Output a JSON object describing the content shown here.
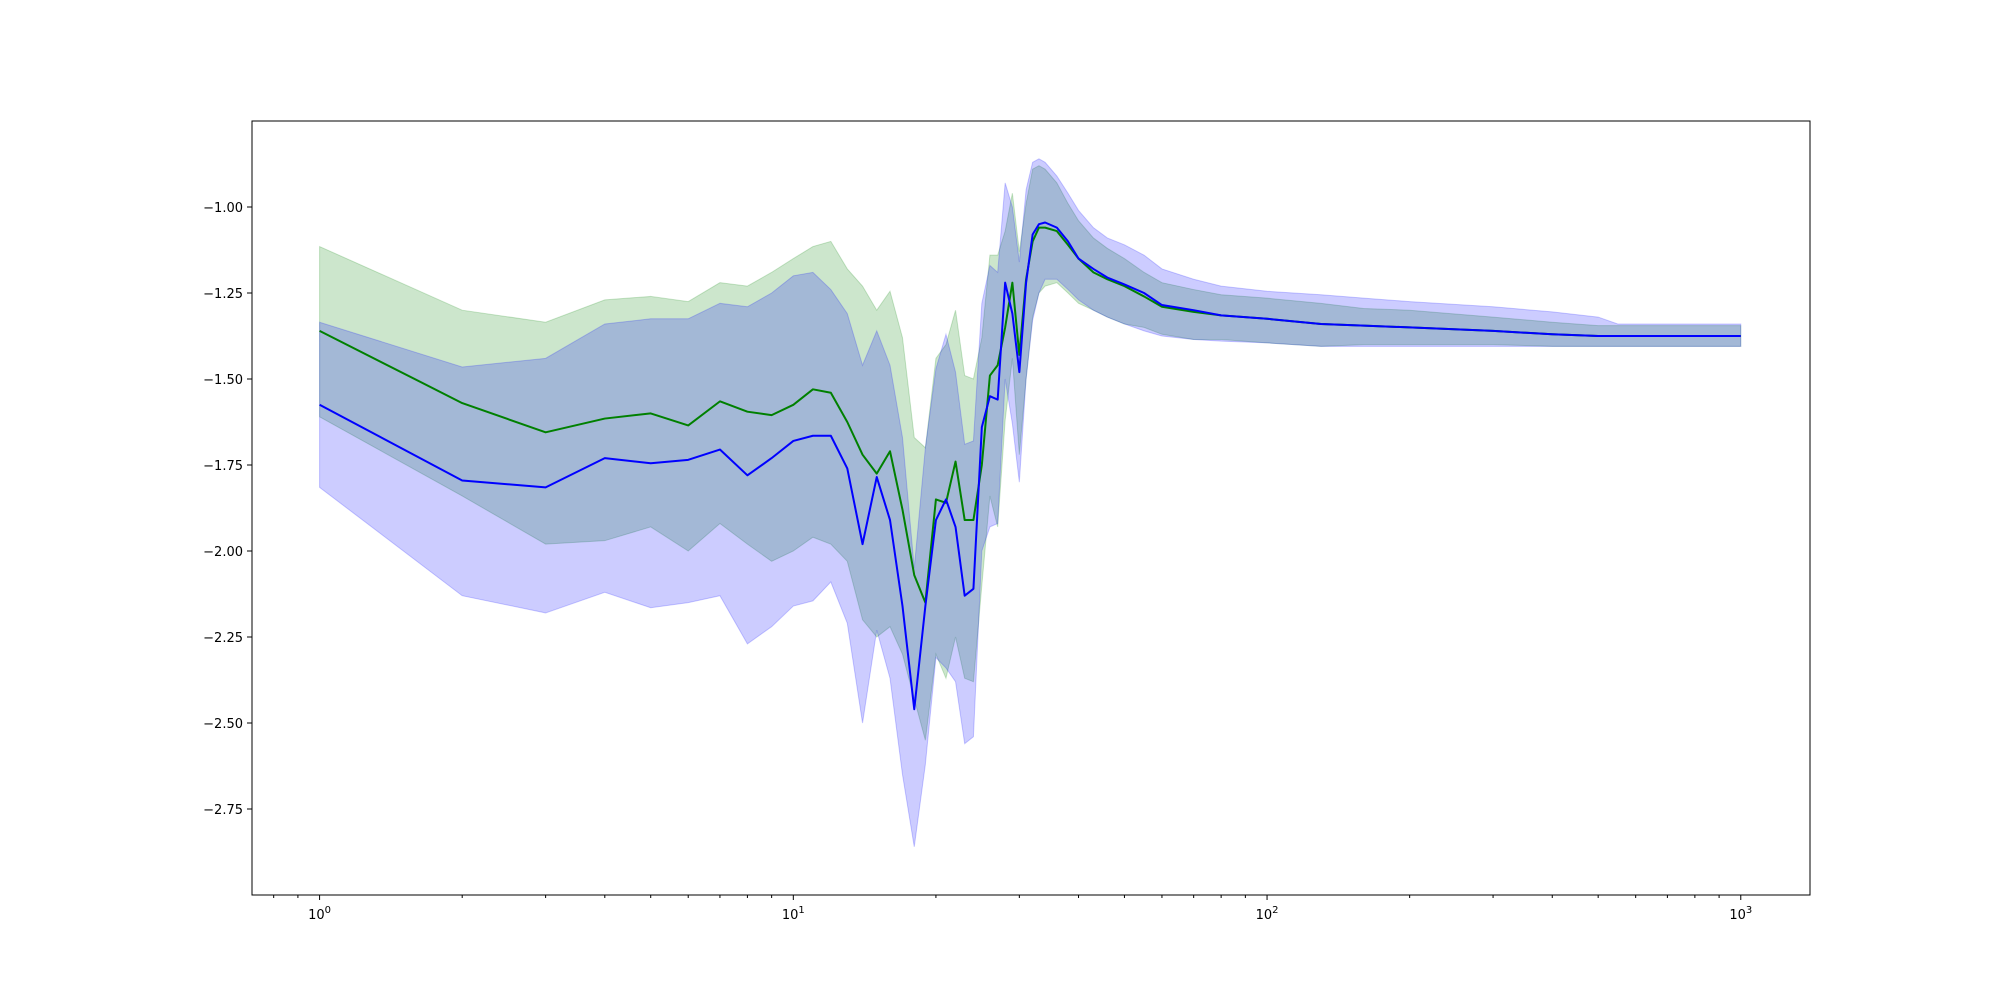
{
  "chart_data": {
    "type": "line",
    "title": "",
    "xlabel": "",
    "ylabel": "",
    "xscale": "log",
    "xlim": [
      0.72,
      1400
    ],
    "ylim": [
      -3.0,
      -0.75
    ],
    "grid": false,
    "legend": "none",
    "x_tick_labels": [
      {
        "value": 1,
        "base": "10",
        "exp": "0"
      },
      {
        "value": 10,
        "base": "10",
        "exp": "1"
      },
      {
        "value": 100,
        "base": "10",
        "exp": "2"
      },
      {
        "value": 1000,
        "base": "10",
        "exp": "3"
      }
    ],
    "y_ticks": [
      -1.0,
      -1.25,
      -1.5,
      -1.75,
      -2.0,
      -2.25,
      -2.5,
      -2.75
    ],
    "y_tick_labels": [
      "−1.00",
      "−1.25",
      "−1.50",
      "−1.75",
      "−2.00",
      "−2.25",
      "−2.50",
      "−2.75"
    ],
    "series": [
      {
        "color": "#008000",
        "fill_color": "#008000",
        "x": [
          1,
          2,
          3,
          4,
          5,
          6,
          7,
          8,
          9,
          10,
          11,
          12,
          13,
          14,
          15,
          16,
          17,
          18,
          19,
          20,
          21,
          22,
          23,
          24,
          25,
          26,
          27,
          28,
          29,
          30,
          31,
          32,
          33,
          34,
          36,
          38,
          40,
          43,
          46,
          50,
          55,
          60,
          70,
          80,
          100,
          130,
          160,
          200,
          300,
          400,
          500,
          550,
          1000
        ],
        "y": [
          -1.36,
          -1.57,
          -1.655,
          -1.615,
          -1.6,
          -1.635,
          -1.565,
          -1.595,
          -1.605,
          -1.575,
          -1.53,
          -1.54,
          -1.625,
          -1.72,
          -1.775,
          -1.71,
          -1.88,
          -2.07,
          -2.15,
          -1.85,
          -1.86,
          -1.74,
          -1.91,
          -1.91,
          -1.75,
          -1.49,
          -1.46,
          -1.35,
          -1.22,
          -1.43,
          -1.21,
          -1.1,
          -1.06,
          -1.06,
          -1.07,
          -1.11,
          -1.15,
          -1.19,
          -1.21,
          -1.23,
          -1.26,
          -1.29,
          -1.305,
          -1.315,
          -1.325,
          -1.34,
          -1.345,
          -1.35,
          -1.36,
          -1.37,
          -1.375,
          -1.375,
          -1.375
        ],
        "lower": [
          -1.61,
          -1.84,
          -1.98,
          -1.97,
          -1.93,
          -2.0,
          -1.92,
          -1.98,
          -2.03,
          -2.0,
          -1.96,
          -1.98,
          -2.03,
          -2.2,
          -2.25,
          -2.22,
          -2.3,
          -2.43,
          -2.55,
          -2.3,
          -2.37,
          -2.25,
          -2.37,
          -2.38,
          -2.1,
          -1.84,
          -1.93,
          -1.62,
          -1.44,
          -1.72,
          -1.5,
          -1.32,
          -1.25,
          -1.23,
          -1.22,
          -1.25,
          -1.28,
          -1.3,
          -1.32,
          -1.34,
          -1.35,
          -1.37,
          -1.385,
          -1.385,
          -1.395,
          -1.405,
          -1.4,
          -1.4,
          -1.4,
          -1.405,
          -1.405,
          -1.405,
          -1.405
        ],
        "upper": [
          -1.115,
          -1.3,
          -1.335,
          -1.27,
          -1.26,
          -1.275,
          -1.22,
          -1.23,
          -1.19,
          -1.15,
          -1.115,
          -1.1,
          -1.18,
          -1.23,
          -1.3,
          -1.245,
          -1.38,
          -1.67,
          -1.7,
          -1.44,
          -1.4,
          -1.3,
          -1.49,
          -1.5,
          -1.38,
          -1.14,
          -1.14,
          -1.07,
          -0.96,
          -1.13,
          -0.99,
          -0.89,
          -0.88,
          -0.89,
          -0.93,
          -0.99,
          -1.04,
          -1.09,
          -1.12,
          -1.15,
          -1.19,
          -1.22,
          -1.24,
          -1.255,
          -1.265,
          -1.28,
          -1.295,
          -1.3,
          -1.32,
          -1.335,
          -1.345,
          -1.345,
          -1.345
        ]
      },
      {
        "color": "#0000ff",
        "fill_color": "#0000ff",
        "x": [
          1,
          2,
          3,
          4,
          5,
          6,
          7,
          8,
          9,
          10,
          11,
          12,
          13,
          14,
          15,
          16,
          17,
          18,
          19,
          20,
          21,
          22,
          23,
          24,
          25,
          26,
          27,
          28,
          29,
          30,
          31,
          32,
          33,
          34,
          36,
          38,
          40,
          43,
          46,
          50,
          55,
          60,
          70,
          80,
          100,
          130,
          160,
          200,
          300,
          400,
          500,
          550,
          1000
        ],
        "y": [
          -1.575,
          -1.795,
          -1.815,
          -1.73,
          -1.745,
          -1.735,
          -1.705,
          -1.78,
          -1.73,
          -1.68,
          -1.665,
          -1.665,
          -1.76,
          -1.98,
          -1.785,
          -1.91,
          -2.16,
          -2.46,
          -2.16,
          -1.91,
          -1.85,
          -1.93,
          -2.13,
          -2.11,
          -1.64,
          -1.55,
          -1.56,
          -1.22,
          -1.31,
          -1.48,
          -1.22,
          -1.08,
          -1.05,
          -1.045,
          -1.06,
          -1.1,
          -1.15,
          -1.18,
          -1.205,
          -1.225,
          -1.25,
          -1.285,
          -1.3,
          -1.315,
          -1.325,
          -1.34,
          -1.345,
          -1.35,
          -1.36,
          -1.37,
          -1.375,
          -1.375,
          -1.375
        ],
        "lower": [
          -1.815,
          -2.13,
          -2.18,
          -2.12,
          -2.165,
          -2.15,
          -2.13,
          -2.27,
          -2.22,
          -2.16,
          -2.145,
          -2.09,
          -2.21,
          -2.5,
          -2.23,
          -2.37,
          -2.65,
          -2.86,
          -2.62,
          -2.31,
          -2.34,
          -2.38,
          -2.56,
          -2.54,
          -2.0,
          -1.93,
          -1.92,
          -1.5,
          -1.63,
          -1.8,
          -1.5,
          -1.33,
          -1.25,
          -1.21,
          -1.21,
          -1.24,
          -1.27,
          -1.3,
          -1.32,
          -1.34,
          -1.36,
          -1.375,
          -1.385,
          -1.39,
          -1.395,
          -1.405,
          -1.405,
          -1.405,
          -1.405,
          -1.405,
          -1.405,
          -1.405,
          -1.405
        ],
        "upper": [
          -1.335,
          -1.465,
          -1.44,
          -1.34,
          -1.325,
          -1.325,
          -1.28,
          -1.29,
          -1.25,
          -1.2,
          -1.19,
          -1.24,
          -1.31,
          -1.46,
          -1.36,
          -1.46,
          -1.67,
          -2.05,
          -1.7,
          -1.47,
          -1.37,
          -1.48,
          -1.69,
          -1.68,
          -1.28,
          -1.17,
          -1.19,
          -0.93,
          -1.0,
          -1.16,
          -0.95,
          -0.87,
          -0.86,
          -0.87,
          -0.91,
          -0.96,
          -1.01,
          -1.06,
          -1.09,
          -1.11,
          -1.14,
          -1.18,
          -1.21,
          -1.23,
          -1.245,
          -1.255,
          -1.265,
          -1.275,
          -1.29,
          -1.305,
          -1.32,
          -1.34,
          -1.34
        ]
      }
    ]
  }
}
